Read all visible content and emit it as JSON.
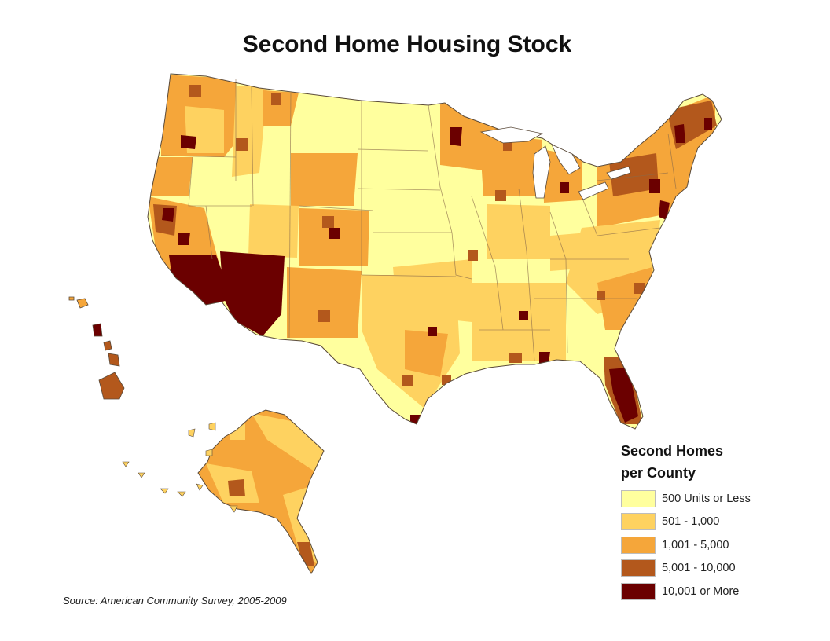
{
  "map": {
    "title": "Second Home Housing Stock",
    "source": "Source: American Community Survey, 2005-2009",
    "legend": {
      "title_line1": "Second Homes",
      "title_line2": "per County",
      "items": [
        {
          "label": "500 Units or Less",
          "color": "#ffff9e"
        },
        {
          "label": "501 - 1,000",
          "color": "#fed260"
        },
        {
          "label": "1,001 - 5,000",
          "color": "#f5a63a"
        },
        {
          "label": "5,001 - 10,000",
          "color": "#b3581c"
        },
        {
          "label": "10,001 or More",
          "color": "#6b0000"
        }
      ]
    },
    "regions": [
      "Contiguous United States",
      "Alaska",
      "Hawaii"
    ]
  }
}
